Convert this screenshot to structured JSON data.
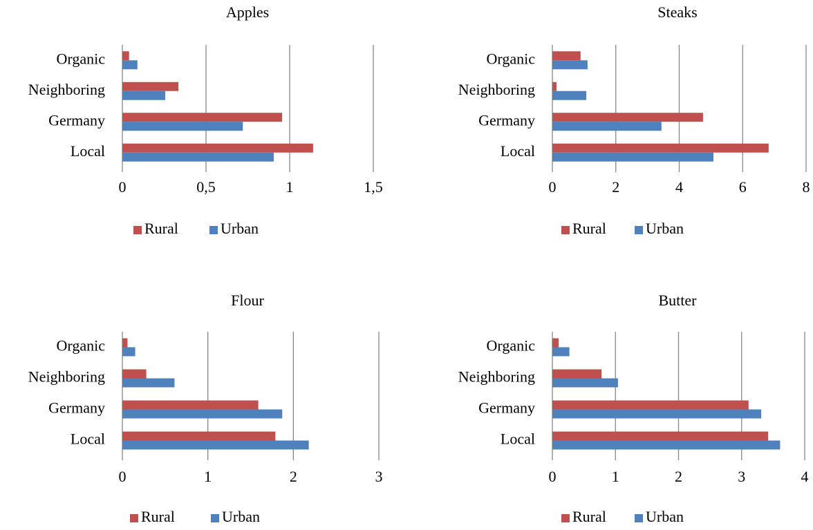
{
  "chart_data": [
    {
      "type": "bar",
      "title": "Apples",
      "categories": [
        "Local",
        "Germany",
        "Neighboring",
        "Organic"
      ],
      "series": [
        {
          "name": "Rural",
          "color": "#c0504d",
          "values": [
            1.14,
            0.955,
            0.335,
            0.04
          ]
        },
        {
          "name": "Urban",
          "color": "#4f81bd",
          "values": [
            0.905,
            0.72,
            0.256,
            0.09
          ]
        }
      ],
      "xlim": [
        0,
        1.5
      ],
      "xticks": [
        0,
        {
          "value": 0.5,
          "label": "0,5"
        },
        1,
        {
          "value": 1.5,
          "label": "1,5"
        }
      ],
      "grid": true,
      "legend": "bottom"
    },
    {
      "type": "bar",
      "title": "Steaks",
      "categories": [
        "Local",
        "Germany",
        "Neighboring",
        "Organic"
      ],
      "series": [
        {
          "name": "Rural",
          "color": "#c0504d",
          "values": [
            6.82,
            4.75,
            0.13,
            0.89
          ]
        },
        {
          "name": "Urban",
          "color": "#4f81bd",
          "values": [
            5.08,
            3.44,
            1.07,
            1.11
          ]
        }
      ],
      "xlim": [
        0,
        8
      ],
      "xticks": [
        0,
        2,
        4,
        6,
        8
      ],
      "grid": true,
      "legend": "bottom"
    },
    {
      "type": "bar",
      "title": "Flour",
      "categories": [
        "Local",
        "Germany",
        "Neighboring",
        "Organic"
      ],
      "series": [
        {
          "name": "Rural",
          "color": "#c0504d",
          "values": [
            1.79,
            1.59,
            0.28,
            0.06
          ]
        },
        {
          "name": "Urban",
          "color": "#4f81bd",
          "values": [
            2.18,
            1.87,
            0.61,
            0.15
          ]
        }
      ],
      "xlim": [
        0,
        3
      ],
      "xticks": [
        0,
        1,
        2,
        3
      ],
      "grid": true,
      "legend": "bottom"
    },
    {
      "type": "bar",
      "title": "Butter",
      "categories": [
        "Local",
        "Germany",
        "Neighboring",
        "Organic"
      ],
      "series": [
        {
          "name": "Rural",
          "color": "#c0504d",
          "values": [
            3.42,
            3.11,
            0.78,
            0.1
          ]
        },
        {
          "name": "Urban",
          "color": "#4f81bd",
          "values": [
            3.61,
            3.31,
            1.04,
            0.27
          ]
        }
      ],
      "xlim": [
        0,
        4
      ],
      "xticks": [
        0,
        1,
        2,
        3,
        4
      ],
      "grid": true,
      "legend": "bottom"
    }
  ]
}
